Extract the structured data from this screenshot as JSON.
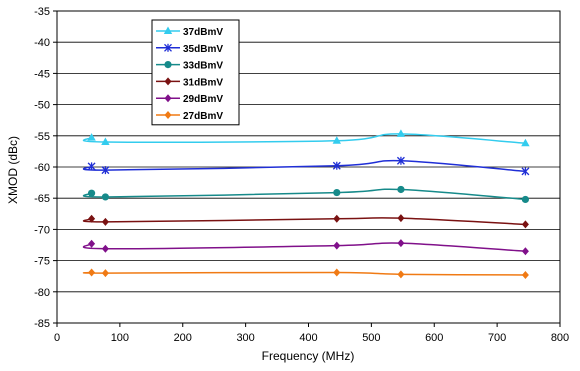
{
  "chart_data": {
    "type": "line",
    "xlabel": "Frequency (MHz)",
    "ylabel": "XMOD (dBc)",
    "xlim": [
      0,
      800
    ],
    "ylim": [
      -85,
      -35
    ],
    "xticks": [
      0,
      100,
      200,
      300,
      400,
      500,
      600,
      700,
      800
    ],
    "yticks": [
      -35,
      -40,
      -45,
      -50,
      -55,
      -60,
      -65,
      -70,
      -75,
      -80,
      -85
    ],
    "grid": true,
    "legend_position": "top-left",
    "x": [
      55,
      77,
      445,
      547,
      745
    ],
    "series": [
      {
        "name": "37dBmV",
        "color": "#33ccee",
        "marker": "triangle",
        "values": [
          -55.3,
          -56.0,
          -55.8,
          -54.7,
          -56.2
        ]
      },
      {
        "name": "35dBmV",
        "color": "#1f2ed6",
        "marker": "x",
        "values": [
          -59.9,
          -60.5,
          -59.8,
          -59.0,
          -60.7
        ]
      },
      {
        "name": "33dBmV",
        "color": "#168a8a",
        "marker": "circle",
        "values": [
          -64.2,
          -64.8,
          -64.1,
          -63.6,
          -65.2
        ]
      },
      {
        "name": "31dBmV",
        "color": "#7a1212",
        "marker": "diamond",
        "values": [
          -68.3,
          -68.8,
          -68.3,
          -68.2,
          -69.2
        ]
      },
      {
        "name": "29dBmV",
        "color": "#80108a",
        "marker": "diamond",
        "values": [
          -72.3,
          -73.1,
          -72.6,
          -72.2,
          -73.5
        ]
      },
      {
        "name": "27dBmV",
        "color": "#f07a14",
        "marker": "diamond",
        "values": [
          -76.9,
          -77.0,
          -76.9,
          -77.2,
          -77.3
        ]
      }
    ]
  }
}
